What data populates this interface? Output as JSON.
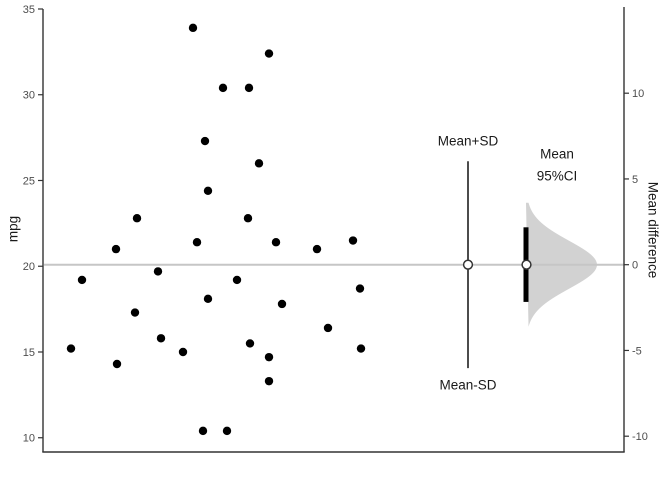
{
  "chart_data": {
    "type": "scatter",
    "description": "Jittered one-group scatter of mpg values with mean reference line, Mean±SD interval, and sampling-distribution half-violin with mean 95% CI on a secondary 'Mean difference' axis",
    "left_axis": {
      "label": "mpg",
      "ticks": [
        10,
        15,
        20,
        25,
        30,
        35
      ],
      "range": [
        9.2,
        35.0
      ],
      "grid": false
    },
    "right_axis": {
      "label": "Mean difference",
      "ticks": [
        -10,
        -5,
        0,
        5,
        10
      ],
      "range": [
        -10.9,
        15.0
      ],
      "grid": false
    },
    "mean": 20.09,
    "sd": 6.03,
    "ci95": [
      17.92,
      22.27
    ],
    "points": [
      [
        193,
        33.9
      ],
      [
        269,
        32.4
      ],
      [
        223,
        30.4
      ],
      [
        249,
        30.4
      ],
      [
        205,
        27.3
      ],
      [
        259,
        26.0
      ],
      [
        208,
        24.4
      ],
      [
        137,
        22.8
      ],
      [
        248,
        22.8
      ],
      [
        353,
        21.5
      ],
      [
        197,
        21.4
      ],
      [
        276,
        21.4
      ],
      [
        116,
        21.0
      ],
      [
        317,
        21.0
      ],
      [
        158,
        19.7
      ],
      [
        82,
        19.2
      ],
      [
        237,
        19.2
      ],
      [
        360,
        18.7
      ],
      [
        208,
        18.1
      ],
      [
        282,
        17.8
      ],
      [
        135,
        17.3
      ],
      [
        328,
        16.4
      ],
      [
        161,
        15.8
      ],
      [
        250,
        15.5
      ],
      [
        71,
        15.2
      ],
      [
        361,
        15.2
      ],
      [
        183,
        15.0
      ],
      [
        269,
        14.7
      ],
      [
        117,
        14.3
      ],
      [
        269,
        13.3
      ],
      [
        203,
        10.4
      ],
      [
        227,
        10.4
      ]
    ],
    "annotations": {
      "mean_plus_sd": "Mean+SD",
      "mean_minus_sd": "Mean-SD",
      "mean": "Mean",
      "ci": "95%CI"
    },
    "colors": {
      "point": "#000000",
      "mean_line": "#c6c6c6",
      "violin": "#d2d2d2",
      "axis": "#333333",
      "tick_label": "#4d4d4d",
      "ci_bar": "#000000",
      "sd_line": "#000000",
      "marker_fill": "#ffffff",
      "marker_stroke": "#333333"
    }
  }
}
